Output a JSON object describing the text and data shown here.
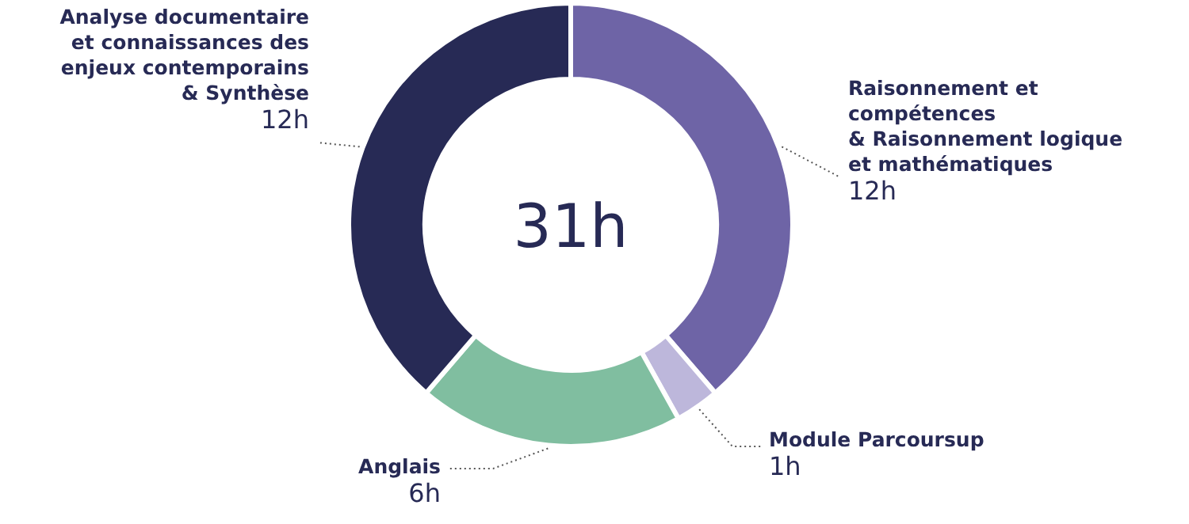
{
  "chart_data": {
    "type": "donut",
    "categories": [
      "Raisonnement et\ncompétences\n& Raisonnement logique\net mathématiques",
      "Module Parcoursup",
      "Anglais",
      "Analyse documentaire\net connaissances des\nenjeux contemporains\n& Synthèse"
    ],
    "values": [
      12,
      1,
      6,
      12
    ],
    "colors": [
      "#6e64a6",
      "#bdb7db",
      "#80bea0",
      "#272a55"
    ],
    "value_labels": [
      "12h",
      "1h",
      "6h",
      "12h"
    ],
    "annotations": [
      "31h"
    ]
  }
}
